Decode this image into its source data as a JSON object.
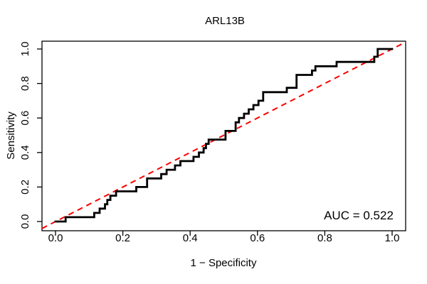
{
  "figure": {
    "title": "ARL13B",
    "annotation": "AUC = 0.522"
  },
  "chart_data": {
    "type": "line",
    "subtype": "roc-step-curve",
    "title": "ARL13B",
    "xlabel": "1 − Specificity",
    "ylabel": "Sensitivity",
    "xlim": [
      0.0,
      1.0
    ],
    "ylim": [
      0.0,
      1.0
    ],
    "x_ticks": [
      0.0,
      0.2,
      0.4,
      0.6,
      0.8,
      1.0
    ],
    "y_ticks": [
      0.0,
      0.2,
      0.4,
      0.6,
      0.8,
      1.0
    ],
    "x_tick_labels": [
      "0.0",
      "0.2",
      "0.4",
      "0.6",
      "0.8",
      "1.0"
    ],
    "y_tick_labels": [
      "0.0",
      "0.2",
      "0.4",
      "0.6",
      "0.8",
      "1.0"
    ],
    "grid": false,
    "legend": "none",
    "auc": 0.522,
    "annotation": {
      "text": "AUC = 0.522",
      "position": "bottom-right"
    },
    "series": [
      {
        "name": "ROC curve",
        "type": "step",
        "color": "#000000",
        "line_width": 2.8,
        "points": [
          [
            0.0,
            0.0
          ],
          [
            0.03,
            0.0
          ],
          [
            0.03,
            0.025
          ],
          [
            0.115,
            0.025
          ],
          [
            0.115,
            0.05
          ],
          [
            0.131,
            0.05
          ],
          [
            0.131,
            0.075
          ],
          [
            0.147,
            0.075
          ],
          [
            0.147,
            0.1
          ],
          [
            0.154,
            0.1
          ],
          [
            0.154,
            0.125
          ],
          [
            0.163,
            0.125
          ],
          [
            0.163,
            0.15
          ],
          [
            0.18,
            0.15
          ],
          [
            0.18,
            0.175
          ],
          [
            0.24,
            0.175
          ],
          [
            0.24,
            0.2
          ],
          [
            0.272,
            0.2
          ],
          [
            0.272,
            0.25
          ],
          [
            0.314,
            0.25
          ],
          [
            0.314,
            0.275
          ],
          [
            0.33,
            0.275
          ],
          [
            0.33,
            0.3
          ],
          [
            0.355,
            0.3
          ],
          [
            0.355,
            0.325
          ],
          [
            0.371,
            0.325
          ],
          [
            0.371,
            0.35
          ],
          [
            0.41,
            0.35
          ],
          [
            0.41,
            0.375
          ],
          [
            0.426,
            0.375
          ],
          [
            0.426,
            0.4
          ],
          [
            0.44,
            0.4
          ],
          [
            0.44,
            0.425
          ],
          [
            0.447,
            0.425
          ],
          [
            0.447,
            0.45
          ],
          [
            0.455,
            0.45
          ],
          [
            0.455,
            0.475
          ],
          [
            0.505,
            0.475
          ],
          [
            0.505,
            0.525
          ],
          [
            0.535,
            0.525
          ],
          [
            0.535,
            0.575
          ],
          [
            0.545,
            0.575
          ],
          [
            0.545,
            0.6
          ],
          [
            0.56,
            0.6
          ],
          [
            0.56,
            0.625
          ],
          [
            0.574,
            0.625
          ],
          [
            0.574,
            0.65
          ],
          [
            0.588,
            0.65
          ],
          [
            0.588,
            0.675
          ],
          [
            0.603,
            0.675
          ],
          [
            0.603,
            0.7
          ],
          [
            0.617,
            0.7
          ],
          [
            0.617,
            0.75
          ],
          [
            0.687,
            0.75
          ],
          [
            0.687,
            0.775
          ],
          [
            0.716,
            0.775
          ],
          [
            0.716,
            0.85
          ],
          [
            0.762,
            0.85
          ],
          [
            0.762,
            0.875
          ],
          [
            0.772,
            0.875
          ],
          [
            0.772,
            0.9
          ],
          [
            0.835,
            0.9
          ],
          [
            0.835,
            0.925
          ],
          [
            0.947,
            0.925
          ],
          [
            0.947,
            0.955
          ],
          [
            0.957,
            0.955
          ],
          [
            0.957,
            1.0
          ],
          [
            1.0,
            1.0
          ]
        ]
      },
      {
        "name": "chance diagonal",
        "type": "line",
        "color": "#FF0000",
        "line_style": "dashed",
        "dash": [
          8,
          6
        ],
        "line_width": 2,
        "points": [
          [
            0.0,
            0.0
          ],
          [
            1.0,
            1.0
          ]
        ]
      }
    ]
  }
}
